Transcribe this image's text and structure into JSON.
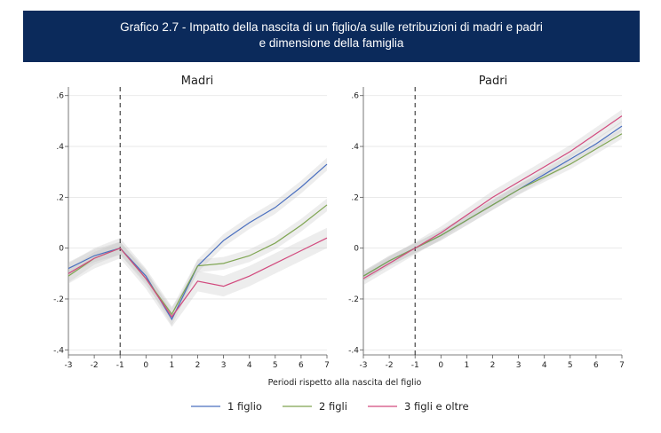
{
  "header": {
    "title_line1": "Grafico 2.7 - Impatto della nascita di un figlio/a sulle retribuzioni di madri e padri",
    "title_line2": "e dimensione della famiglia"
  },
  "colors": {
    "header_bg": "#0b2a5b",
    "series": [
      "#4a6fbf",
      "#7fa552",
      "#d24a7e"
    ],
    "ci_band": "#bdbdbd"
  },
  "chart_data": [
    {
      "type": "line",
      "title": "Madri",
      "xlabel": "Periodi rispetto alla nascita del figlio",
      "ylabel": "",
      "x": [
        -3,
        -2,
        -1,
        0,
        1,
        2,
        3,
        4,
        5,
        6,
        7
      ],
      "xticks": [
        "-3",
        "-2",
        "-1",
        "0",
        "1",
        "2",
        "3",
        "4",
        "5",
        "6",
        "7"
      ],
      "yticks": [
        ".6",
        ".4",
        ".2",
        "0",
        "-.2",
        "-.4"
      ],
      "ytick_values": [
        0.6,
        0.4,
        0.2,
        0,
        -0.2,
        -0.4
      ],
      "ylim": [
        -0.42,
        0.62
      ],
      "xlim": [
        -3,
        7
      ],
      "vline_x": -1,
      "grid": true,
      "series": [
        {
          "name": "1 figlio",
          "values": [
            -0.08,
            -0.03,
            0.0,
            -0.11,
            -0.28,
            -0.07,
            0.03,
            0.1,
            0.16,
            0.24,
            0.33
          ],
          "ci": 0.025
        },
        {
          "name": "2 figli",
          "values": [
            -0.11,
            -0.04,
            0.0,
            -0.12,
            -0.26,
            -0.07,
            -0.06,
            -0.03,
            0.02,
            0.09,
            0.17
          ],
          "ci": 0.025
        },
        {
          "name": "3 figli e oltre",
          "values": [
            -0.1,
            -0.04,
            0.0,
            -0.12,
            -0.27,
            -0.13,
            -0.15,
            -0.11,
            -0.06,
            -0.01,
            0.04
          ],
          "ci": 0.04
        }
      ]
    },
    {
      "type": "line",
      "title": "Padri",
      "xlabel": "Periodi rispetto alla nascita del figlio",
      "ylabel": "",
      "x": [
        -3,
        -2,
        -1,
        0,
        1,
        2,
        3,
        4,
        5,
        6,
        7
      ],
      "xticks": [
        "-3",
        "-2",
        "-1",
        "0",
        "1",
        "2",
        "3",
        "4",
        "5",
        "6",
        "7"
      ],
      "yticks": [
        ".6",
        ".4",
        ".2",
        "0",
        "-.2",
        "-.4"
      ],
      "ytick_values": [
        0.6,
        0.4,
        0.2,
        0,
        -0.2,
        -0.4
      ],
      "ylim": [
        -0.42,
        0.62
      ],
      "xlim": [
        -3,
        7
      ],
      "vline_x": -1,
      "grid": true,
      "series": [
        {
          "name": "1 figlio",
          "values": [
            -0.11,
            -0.05,
            0.0,
            0.05,
            0.11,
            0.17,
            0.23,
            0.29,
            0.35,
            0.41,
            0.48
          ],
          "ci": 0.02
        },
        {
          "name": "2 figli",
          "values": [
            -0.11,
            -0.05,
            0.0,
            0.05,
            0.11,
            0.17,
            0.23,
            0.28,
            0.33,
            0.39,
            0.45
          ],
          "ci": 0.02
        },
        {
          "name": "3 figli e oltre",
          "values": [
            -0.12,
            -0.06,
            0.0,
            0.06,
            0.13,
            0.2,
            0.26,
            0.32,
            0.38,
            0.45,
            0.52
          ],
          "ci": 0.025
        }
      ]
    }
  ],
  "legend": {
    "position": "bottom",
    "items": [
      "1 figlio",
      "2 figli",
      "3 figli e oltre"
    ]
  }
}
